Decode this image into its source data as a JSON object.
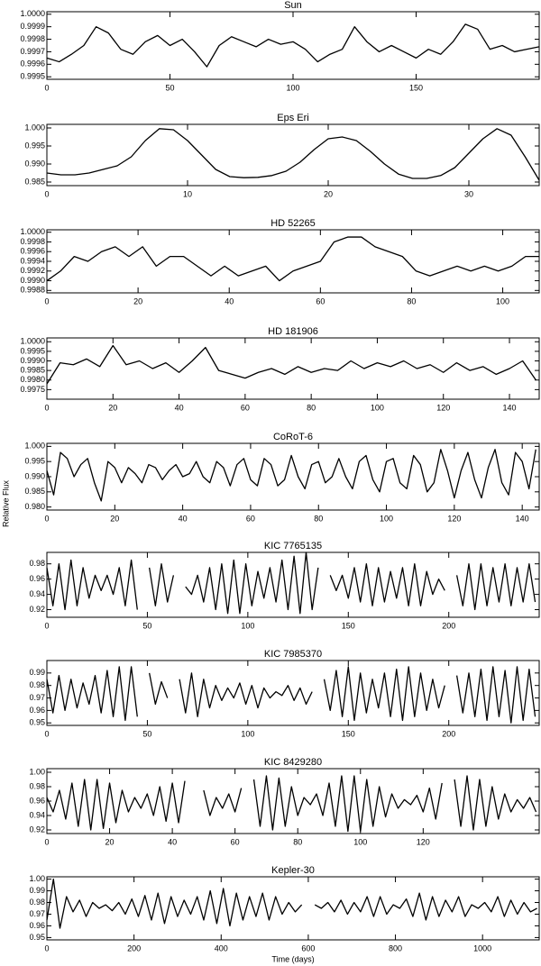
{
  "chart_data": [
    {
      "type": "line",
      "title": "Sun",
      "color": "#000000",
      "x": [
        0,
        5,
        10,
        15,
        20,
        25,
        30,
        35,
        40,
        45,
        50,
        55,
        60,
        65,
        70,
        75,
        80,
        85,
        90,
        95,
        100,
        105,
        110,
        115,
        120,
        125,
        130,
        135,
        140,
        145,
        150,
        155,
        160,
        165,
        170,
        175,
        180,
        185,
        190,
        195,
        200
      ],
      "values": [
        0.99965,
        0.99962,
        0.99968,
        0.99975,
        0.9999,
        0.99985,
        0.99972,
        0.99968,
        0.99978,
        0.99983,
        0.99975,
        0.9998,
        0.9997,
        0.99958,
        0.99975,
        0.99982,
        0.99978,
        0.99974,
        0.9998,
        0.99976,
        0.99978,
        0.99972,
        0.99962,
        0.99968,
        0.99972,
        0.9999,
        0.99978,
        0.9997,
        0.99975,
        0.9997,
        0.99965,
        0.99972,
        0.99968,
        0.99978,
        0.99992,
        0.99988,
        0.99972,
        0.99975,
        0.9997,
        0.99972,
        0.99974
      ],
      "xlim": [
        0,
        200
      ],
      "xticks": [
        0,
        50,
        100,
        150
      ],
      "ylim": [
        0.99948,
        1.00002
      ],
      "yticks": [
        {
          "value": 1.0,
          "label": "1.0000"
        },
        0.9999,
        0.9998,
        0.9997,
        0.9996,
        0.9995
      ]
    },
    {
      "type": "line",
      "title": "Eps Eri",
      "color": "#000000",
      "x": [
        0,
        1,
        2,
        3,
        4,
        5,
        6,
        7,
        8,
        9,
        10,
        11,
        12,
        13,
        14,
        15,
        16,
        17,
        18,
        19,
        20,
        21,
        22,
        23,
        24,
        25,
        26,
        27,
        28,
        29,
        30,
        31,
        32,
        33,
        34,
        35
      ],
      "values": [
        0.9875,
        0.987,
        0.987,
        0.9875,
        0.9885,
        0.9895,
        0.992,
        0.9965,
        0.9998,
        0.9995,
        0.9965,
        0.9925,
        0.9885,
        0.9865,
        0.9862,
        0.9863,
        0.9868,
        0.988,
        0.9905,
        0.994,
        0.997,
        0.9975,
        0.9965,
        0.9935,
        0.99,
        0.9872,
        0.986,
        0.986,
        0.9868,
        0.989,
        0.993,
        0.997,
        0.9998,
        0.998,
        0.992,
        0.9855
      ],
      "xlim": [
        0,
        35
      ],
      "xticks": [
        0,
        10,
        20,
        30
      ],
      "ylim": [
        0.984,
        1.001
      ],
      "yticks": [
        {
          "value": 1.0,
          "label": "1.000"
        },
        0.995,
        {
          "value": 0.99,
          "label": "0.990"
        },
        0.985
      ]
    },
    {
      "type": "line",
      "title": "HD 52265",
      "color": "#000000",
      "x": [
        0,
        3,
        6,
        9,
        12,
        15,
        18,
        21,
        24,
        27,
        30,
        33,
        36,
        39,
        42,
        45,
        48,
        51,
        54,
        57,
        60,
        63,
        66,
        69,
        72,
        75,
        78,
        81,
        84,
        87,
        90,
        93,
        96,
        99,
        102,
        105,
        108
      ],
      "values": [
        0.999,
        0.9992,
        0.9995,
        0.9994,
        0.9996,
        0.9997,
        0.9995,
        0.9997,
        0.9993,
        0.9995,
        0.9995,
        0.9993,
        0.9991,
        0.9993,
        0.9991,
        0.9992,
        0.9993,
        0.999,
        0.9992,
        0.9993,
        0.9994,
        0.9998,
        0.9999,
        0.9999,
        0.9997,
        0.9996,
        0.9995,
        0.9992,
        0.9991,
        0.9992,
        0.9993,
        0.9992,
        0.9993,
        0.9992,
        0.9993,
        0.9995,
        0.9995
      ],
      "xlim": [
        0,
        108
      ],
      "xticks": [
        0,
        20,
        40,
        60,
        80,
        100
      ],
      "ylim": [
        0.99875,
        1.00005
      ],
      "yticks": [
        {
          "value": 1.0,
          "label": "1.0000"
        },
        0.9998,
        0.9996,
        0.9994,
        0.9992,
        {
          "value": 0.999,
          "label": "0.9990"
        },
        0.9988
      ]
    },
    {
      "type": "line",
      "title": "HD 181906",
      "color": "#000000",
      "x": [
        0,
        4,
        8,
        12,
        16,
        20,
        24,
        28,
        32,
        36,
        40,
        44,
        48,
        52,
        56,
        60,
        64,
        68,
        72,
        76,
        80,
        84,
        88,
        92,
        96,
        100,
        104,
        108,
        112,
        116,
        120,
        124,
        128,
        132,
        136,
        140,
        144,
        148
      ],
      "values": [
        0.9978,
        0.9989,
        0.9988,
        0.9991,
        0.9987,
        0.9998,
        0.9988,
        0.999,
        0.9986,
        0.9989,
        0.9984,
        0.999,
        0.9997,
        0.9985,
        0.9983,
        0.9981,
        0.9984,
        0.9986,
        0.9983,
        0.9987,
        0.9984,
        0.9986,
        0.9985,
        0.999,
        0.9986,
        0.9989,
        0.9987,
        0.999,
        0.9986,
        0.9988,
        0.9984,
        0.9989,
        0.9985,
        0.9987,
        0.9983,
        0.9986,
        0.999,
        0.998
      ],
      "xlim": [
        0,
        149
      ],
      "xticks": [
        0,
        20,
        40,
        60,
        80,
        100,
        120,
        140
      ],
      "ylim": [
        0.997,
        1.0002
      ],
      "yticks": [
        {
          "value": 1.0,
          "label": "1.0000"
        },
        0.9995,
        {
          "value": 0.999,
          "label": "0.9990"
        },
        0.9985,
        {
          "value": 0.998,
          "label": "0.9980"
        },
        0.9975
      ]
    },
    {
      "type": "line",
      "title": "CoRoT-6",
      "ylabel": "Relative Flux",
      "color": "#000000",
      "x": [
        0,
        2,
        4,
        6,
        8,
        10,
        12,
        14,
        16,
        18,
        20,
        22,
        24,
        26,
        28,
        30,
        32,
        34,
        36,
        38,
        40,
        42,
        44,
        46,
        48,
        50,
        52,
        54,
        56,
        58,
        60,
        62,
        64,
        66,
        68,
        70,
        72,
        74,
        76,
        78,
        80,
        82,
        84,
        86,
        88,
        90,
        92,
        94,
        96,
        98,
        100,
        102,
        104,
        106,
        108,
        110,
        112,
        114,
        116,
        118,
        120,
        122,
        124,
        126,
        128,
        130,
        132,
        134,
        136,
        138,
        140,
        142,
        144
      ],
      "values": [
        0.992,
        0.984,
        0.998,
        0.996,
        0.99,
        0.994,
        0.996,
        0.988,
        0.982,
        0.995,
        0.993,
        0.988,
        0.993,
        0.991,
        0.988,
        0.994,
        0.993,
        0.989,
        0.992,
        0.994,
        0.99,
        0.991,
        0.995,
        0.99,
        0.988,
        0.995,
        0.993,
        0.987,
        0.994,
        0.996,
        0.989,
        0.987,
        0.996,
        0.994,
        0.987,
        0.989,
        0.997,
        0.99,
        0.986,
        0.994,
        0.995,
        0.988,
        0.99,
        0.996,
        0.99,
        0.986,
        0.995,
        0.997,
        0.989,
        0.985,
        0.995,
        0.996,
        0.988,
        0.986,
        0.997,
        0.994,
        0.985,
        0.988,
        0.999,
        0.992,
        0.983,
        0.992,
        0.998,
        0.989,
        0.983,
        0.993,
        0.999,
        0.988,
        0.984,
        0.998,
        0.995,
        0.986,
        0.999
      ],
      "xlim": [
        0,
        145
      ],
      "xticks": [
        0,
        20,
        40,
        60,
        80,
        100,
        120,
        140
      ],
      "ylim": [
        0.979,
        1.001
      ],
      "yticks": [
        {
          "value": 1.0,
          "label": "1.000"
        },
        0.995,
        {
          "value": 0.99,
          "label": "0.990"
        },
        0.985,
        {
          "value": 0.98,
          "label": "0.980"
        }
      ]
    },
    {
      "type": "line",
      "title": "KIC 7765135",
      "color": "#000000",
      "x": [
        0,
        3,
        6,
        9,
        12,
        15,
        18,
        21,
        24,
        27,
        30,
        33,
        36,
        39,
        42,
        45,
        48,
        51,
        54,
        57,
        60,
        63,
        66,
        69,
        72,
        75,
        78,
        81,
        84,
        87,
        90,
        93,
        96,
        99,
        102,
        105,
        108,
        111,
        114,
        117,
        120,
        123,
        126,
        129,
        132,
        135,
        138,
        141,
        144,
        147,
        150,
        153,
        156,
        159,
        162,
        165,
        168,
        171,
        174,
        177,
        180,
        183,
        186,
        189,
        192,
        195,
        198,
        201,
        204,
        207,
        210,
        213,
        216,
        219,
        222,
        225,
        228,
        231,
        234,
        237,
        240,
        243
      ],
      "values": [
        0.975,
        0.925,
        0.98,
        0.92,
        0.985,
        0.925,
        0.975,
        0.935,
        0.965,
        0.945,
        0.965,
        0.94,
        0.975,
        0.925,
        0.985,
        0.92,
        null,
        0.975,
        0.925,
        0.98,
        0.93,
        0.965,
        null,
        0.95,
        0.94,
        0.965,
        0.93,
        0.975,
        0.92,
        0.98,
        0.915,
        0.985,
        0.915,
        0.98,
        0.925,
        0.97,
        0.935,
        0.975,
        0.93,
        0.985,
        0.92,
        0.99,
        0.915,
        0.995,
        0.92,
        0.975,
        null,
        0.965,
        0.945,
        0.965,
        0.935,
        0.975,
        0.93,
        0.98,
        0.925,
        0.975,
        0.93,
        0.97,
        0.935,
        0.975,
        0.925,
        0.98,
        0.925,
        0.97,
        0.94,
        0.96,
        0.945,
        null,
        0.965,
        0.925,
        0.98,
        0.92,
        0.98,
        0.925,
        0.975,
        0.93,
        0.98,
        0.925,
        0.975,
        0.93,
        0.98,
        0.93
      ],
      "xlim": [
        0,
        245
      ],
      "xticks": [
        0,
        50,
        100,
        150,
        200
      ],
      "ylim": [
        0.91,
        0.995
      ],
      "yticks": [
        0.98,
        0.96,
        0.94,
        0.92
      ]
    },
    {
      "type": "line",
      "title": "KIC 7985370",
      "color": "#000000",
      "x": [
        0,
        3,
        6,
        9,
        12,
        15,
        18,
        21,
        24,
        27,
        30,
        33,
        36,
        39,
        42,
        45,
        48,
        51,
        54,
        57,
        60,
        63,
        66,
        69,
        72,
        75,
        78,
        81,
        84,
        87,
        90,
        93,
        96,
        99,
        102,
        105,
        108,
        111,
        114,
        117,
        120,
        123,
        126,
        129,
        132,
        135,
        138,
        141,
        144,
        147,
        150,
        153,
        156,
        159,
        162,
        165,
        168,
        171,
        174,
        177,
        180,
        183,
        186,
        189,
        192,
        195,
        198,
        201,
        204,
        207,
        210,
        213,
        216,
        219,
        222,
        225,
        228,
        231,
        234,
        237,
        240,
        243
      ],
      "values": [
        0.985,
        0.958,
        0.988,
        0.96,
        0.985,
        0.962,
        0.982,
        0.965,
        0.988,
        0.958,
        0.992,
        0.955,
        0.995,
        0.952,
        0.995,
        0.955,
        null,
        0.99,
        0.965,
        0.983,
        0.97,
        null,
        0.985,
        0.958,
        0.99,
        0.955,
        0.985,
        0.962,
        0.98,
        0.968,
        0.978,
        0.97,
        0.982,
        0.965,
        0.98,
        0.962,
        0.978,
        0.97,
        0.975,
        0.972,
        0.98,
        0.968,
        0.978,
        0.965,
        0.975,
        null,
        0.985,
        0.96,
        0.992,
        0.955,
        0.995,
        0.952,
        0.99,
        0.958,
        0.985,
        0.962,
        0.99,
        0.955,
        0.993,
        0.952,
        0.995,
        0.955,
        0.99,
        0.96,
        0.985,
        0.962,
        0.98,
        null,
        0.988,
        0.958,
        0.99,
        0.955,
        0.993,
        0.952,
        0.995,
        0.955,
        0.992,
        0.95,
        0.995,
        0.952,
        0.993,
        0.955
      ],
      "xlim": [
        0,
        245
      ],
      "xticks": [
        0,
        50,
        100,
        150,
        200
      ],
      "ylim": [
        0.948,
        1.0
      ],
      "yticks": [
        0.99,
        0.98,
        0.97,
        0.96,
        0.95
      ]
    },
    {
      "type": "line",
      "title": "KIC 8429280",
      "color": "#000000",
      "x": [
        0,
        2,
        4,
        6,
        8,
        10,
        12,
        14,
        16,
        18,
        20,
        22,
        24,
        26,
        28,
        30,
        32,
        34,
        36,
        38,
        40,
        42,
        44,
        46,
        48,
        50,
        52,
        54,
        56,
        58,
        60,
        62,
        64,
        66,
        68,
        70,
        72,
        74,
        76,
        78,
        80,
        82,
        84,
        86,
        88,
        90,
        92,
        94,
        96,
        98,
        100,
        102,
        104,
        106,
        108,
        110,
        112,
        114,
        116,
        118,
        120,
        122,
        124,
        126,
        128,
        130,
        132,
        134,
        136,
        138,
        140,
        142,
        144,
        146,
        148,
        150,
        152,
        154,
        156
      ],
      "values": [
        0.965,
        0.945,
        0.975,
        0.935,
        0.985,
        0.925,
        0.99,
        0.92,
        0.99,
        0.922,
        0.985,
        0.93,
        0.975,
        0.945,
        0.965,
        0.95,
        0.97,
        0.94,
        0.98,
        0.932,
        0.985,
        0.93,
        0.988,
        null,
        null,
        0.975,
        0.94,
        0.965,
        0.95,
        0.97,
        0.945,
        0.978,
        null,
        0.99,
        0.925,
        0.995,
        0.92,
        0.992,
        0.925,
        0.98,
        0.94,
        0.965,
        0.955,
        0.97,
        0.94,
        0.985,
        0.925,
        0.995,
        0.918,
        0.995,
        0.918,
        0.99,
        0.925,
        0.98,
        0.938,
        0.97,
        0.95,
        0.962,
        0.955,
        0.968,
        0.945,
        0.978,
        0.935,
        0.985,
        null,
        0.99,
        0.925,
        0.995,
        0.92,
        0.99,
        0.925,
        0.98,
        0.935,
        0.97,
        0.945,
        0.962,
        0.95,
        0.965,
        0.945
      ],
      "xlim": [
        0,
        157
      ],
      "xticks": [
        0,
        20,
        40,
        60,
        80,
        100,
        120
      ],
      "ylim": [
        0.915,
        1.005
      ],
      "yticks": [
        {
          "value": 1.0,
          "label": "1.00"
        },
        0.98,
        0.96,
        0.94,
        0.92
      ]
    },
    {
      "type": "line",
      "title": "Kepler-30",
      "xlabel": "Time (days)",
      "color": "#000000",
      "x": [
        0,
        15,
        30,
        45,
        60,
        75,
        90,
        105,
        120,
        135,
        150,
        165,
        180,
        195,
        210,
        225,
        240,
        255,
        270,
        285,
        300,
        315,
        330,
        345,
        360,
        375,
        390,
        405,
        420,
        435,
        450,
        465,
        480,
        495,
        510,
        525,
        540,
        555,
        570,
        585,
        600,
        615,
        630,
        645,
        660,
        675,
        690,
        705,
        720,
        735,
        750,
        765,
        780,
        795,
        810,
        825,
        840,
        855,
        870,
        885,
        900,
        915,
        930,
        945,
        960,
        975,
        990,
        1005,
        1020,
        1035,
        1050,
        1065,
        1080,
        1095,
        1110,
        1125
      ],
      "values": [
        0.965,
        1.0,
        0.958,
        0.985,
        0.972,
        0.982,
        0.968,
        0.98,
        0.975,
        0.978,
        0.973,
        0.98,
        0.97,
        0.983,
        0.968,
        0.986,
        0.965,
        0.988,
        0.962,
        0.985,
        0.968,
        0.982,
        0.97,
        0.985,
        0.965,
        0.99,
        0.962,
        0.992,
        0.96,
        0.988,
        0.965,
        0.985,
        0.968,
        0.988,
        0.965,
        0.985,
        0.97,
        0.98,
        0.972,
        0.978,
        null,
        0.978,
        0.975,
        0.98,
        0.972,
        0.982,
        0.97,
        0.98,
        0.972,
        0.985,
        0.968,
        0.985,
        0.97,
        0.978,
        0.975,
        0.983,
        0.968,
        0.988,
        0.965,
        0.985,
        0.968,
        0.982,
        0.972,
        0.985,
        0.968,
        0.978,
        0.975,
        0.98,
        0.972,
        0.985,
        0.968,
        0.982,
        0.97,
        0.98,
        0.972,
        0.975
      ],
      "xlim": [
        0,
        1130
      ],
      "xticks": [
        0,
        200,
        400,
        600,
        800,
        1000
      ],
      "ylim": [
        0.948,
        1.002
      ],
      "yticks": [
        {
          "value": 1.0,
          "label": "1.00"
        },
        0.99,
        0.98,
        0.97,
        0.96,
        0.95
      ]
    }
  ]
}
